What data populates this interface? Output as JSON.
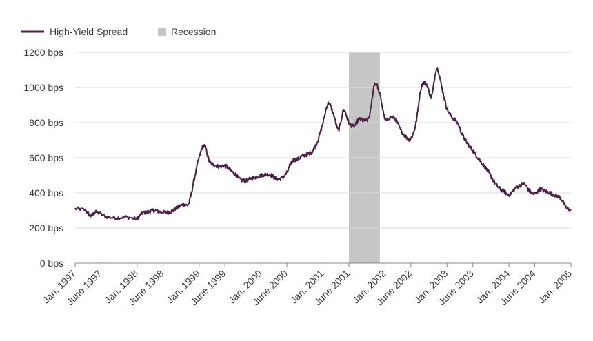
{
  "chart_data": {
    "type": "line",
    "title": "",
    "xlabel": "",
    "ylabel": "",
    "ylim": [
      0,
      1200
    ],
    "xlim": [
      "1997-01",
      "2005-01"
    ],
    "y_ticks": [
      {
        "value": 0,
        "label": "0 bps"
      },
      {
        "value": 200,
        "label": "200 bps"
      },
      {
        "value": 400,
        "label": "400 bps"
      },
      {
        "value": 600,
        "label": "600 bps"
      },
      {
        "value": 800,
        "label": "800 bps"
      },
      {
        "value": 1000,
        "label": "1000 bps"
      },
      {
        "value": 1200,
        "label": "1200 bps"
      }
    ],
    "x_ticks": [
      {
        "date": "1997-01",
        "label": "Jan. 1997"
      },
      {
        "date": "1997-06",
        "label": "June 1997"
      },
      {
        "date": "1998-01",
        "label": "Jan. 1998"
      },
      {
        "date": "1998-06",
        "label": "June 1998"
      },
      {
        "date": "1999-01",
        "label": "Jan. 1999"
      },
      {
        "date": "1999-06",
        "label": "June 1999"
      },
      {
        "date": "2000-01",
        "label": "Jan. 2000"
      },
      {
        "date": "2000-06",
        "label": "June 2000"
      },
      {
        "date": "2001-01",
        "label": "Jan. 2001"
      },
      {
        "date": "2001-06",
        "label": "June 2001"
      },
      {
        "date": "2002-01",
        "label": "Jan. 2002"
      },
      {
        "date": "2002-06",
        "label": "June 2002"
      },
      {
        "date": "2003-01",
        "label": "Jan. 2003"
      },
      {
        "date": "2003-06",
        "label": "June 2003"
      },
      {
        "date": "2004-01",
        "label": "Jan. 2004"
      },
      {
        "date": "2004-06",
        "label": "June 2004"
      },
      {
        "date": "2005-01",
        "label": "Jan. 2005"
      }
    ],
    "grid": true,
    "legend_position": "top-left",
    "series": [
      {
        "name": "High-Yield Spread",
        "color": "#4b2146",
        "points": [
          [
            "1997-01",
            310
          ],
          [
            "1997-03",
            300
          ],
          [
            "1997-04",
            270
          ],
          [
            "1997-05",
            290
          ],
          [
            "1997-07",
            265
          ],
          [
            "1997-09",
            258
          ],
          [
            "1997-11",
            262
          ],
          [
            "1998-01",
            255
          ],
          [
            "1998-02",
            285
          ],
          [
            "1998-03",
            290
          ],
          [
            "1998-04",
            300
          ],
          [
            "1998-05",
            295
          ],
          [
            "1998-06",
            290
          ],
          [
            "1998-07",
            290
          ],
          [
            "1998-08",
            300
          ],
          [
            "1998-09",
            320
          ],
          [
            "1998-10",
            335
          ],
          [
            "1998-11",
            340
          ],
          [
            "1998-12",
            470
          ],
          [
            "1999-01",
            600
          ],
          [
            "1999-02",
            670
          ],
          [
            "1999-03",
            580
          ],
          [
            "1999-04",
            560
          ],
          [
            "1999-05",
            550
          ],
          [
            "1999-06",
            555
          ],
          [
            "1999-07",
            530
          ],
          [
            "1999-08",
            505
          ],
          [
            "1999-09",
            475
          ],
          [
            "1999-10",
            470
          ],
          [
            "1999-11",
            480
          ],
          [
            "1999-12",
            490
          ],
          [
            "2000-01",
            500
          ],
          [
            "2000-02",
            505
          ],
          [
            "2000-03",
            500
          ],
          [
            "2000-04",
            478
          ],
          [
            "2000-05",
            485
          ],
          [
            "2000-06",
            515
          ],
          [
            "2000-07",
            580
          ],
          [
            "2000-08",
            590
          ],
          [
            "2000-09",
            610
          ],
          [
            "2000-10",
            620
          ],
          [
            "2000-11",
            640
          ],
          [
            "2000-12",
            700
          ],
          [
            "2001-01",
            800
          ],
          [
            "2001-02",
            910
          ],
          [
            "2001-03",
            850
          ],
          [
            "2001-04",
            760
          ],
          [
            "2001-05",
            870
          ],
          [
            "2001-06",
            800
          ],
          [
            "2001-07",
            780
          ],
          [
            "2001-08",
            820
          ],
          [
            "2001-09",
            810
          ],
          [
            "2001-10",
            840
          ],
          [
            "2001-11",
            1020
          ],
          [
            "2001-12",
            960
          ],
          [
            "2002-01",
            820
          ],
          [
            "2002-02",
            830
          ],
          [
            "2002-03",
            820
          ],
          [
            "2002-04",
            760
          ],
          [
            "2002-05",
            720
          ],
          [
            "2002-06",
            710
          ],
          [
            "2002-07",
            800
          ],
          [
            "2002-08",
            1000
          ],
          [
            "2002-09",
            1020
          ],
          [
            "2002-10",
            950
          ],
          [
            "2002-11",
            1110
          ],
          [
            "2002-12",
            1000
          ],
          [
            "2003-01",
            880
          ],
          [
            "2003-02",
            830
          ],
          [
            "2003-03",
            800
          ],
          [
            "2003-04",
            730
          ],
          [
            "2003-05",
            680
          ],
          [
            "2003-06",
            640
          ],
          [
            "2003-07",
            600
          ],
          [
            "2003-08",
            560
          ],
          [
            "2003-09",
            520
          ],
          [
            "2003-10",
            470
          ],
          [
            "2003-11",
            430
          ],
          [
            "2003-12",
            410
          ],
          [
            "2004-01",
            390
          ],
          [
            "2004-02",
            420
          ],
          [
            "2004-03",
            440
          ],
          [
            "2004-04",
            450
          ],
          [
            "2004-05",
            410
          ],
          [
            "2004-06",
            395
          ],
          [
            "2004-07",
            420
          ],
          [
            "2004-08",
            410
          ],
          [
            "2004-09",
            400
          ],
          [
            "2004-10",
            385
          ],
          [
            "2004-11",
            370
          ],
          [
            "2004-12",
            320
          ],
          [
            "2005-01",
            300
          ]
        ]
      }
    ],
    "bands": [
      {
        "name": "Recession",
        "start": "2001-06",
        "end": "2001-12",
        "color": "#c6c6c6"
      }
    ]
  }
}
